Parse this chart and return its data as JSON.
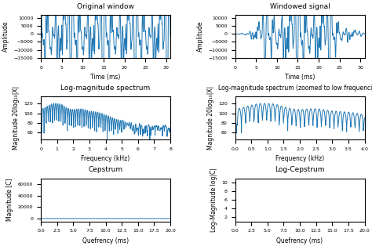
{
  "fig_width": 4.74,
  "fig_height": 3.14,
  "dpi": 100,
  "line_color": "#1f77b4",
  "line_width": 0.7,
  "subplots": {
    "original_window": {
      "title": "Original window",
      "xlabel": "Time (ms)",
      "ylabel": "Amplitude",
      "xlim": [
        0,
        31
      ],
      "ylim": [
        -15000,
        12000
      ],
      "yticks": [
        -15000,
        -10000,
        -5000,
        0,
        5000,
        10000
      ],
      "xticks": [
        0,
        5,
        10,
        15,
        20,
        25,
        30
      ]
    },
    "windowed_signal": {
      "title": "Windowed signal",
      "xlabel": "Time (ms)",
      "ylabel": "Amplitude",
      "xlim": [
        0,
        31
      ],
      "ylim": [
        -15000,
        12000
      ],
      "yticks": [
        -15000,
        -10000,
        -5000,
        0,
        5000,
        10000
      ],
      "xticks": [
        0,
        5,
        10,
        15,
        20,
        25,
        30
      ]
    },
    "log_mag_spectrum": {
      "title": "Log-magnitude spectrum",
      "xlabel": "Frequency (kHz)",
      "ylabel": "Magnitude 20log₁₀|X|",
      "xlim": [
        0,
        8
      ],
      "ylim": [
        45,
        135
      ],
      "yticks": [
        60,
        80,
        100,
        120
      ],
      "xticks": [
        0,
        1,
        2,
        3,
        4,
        5,
        6,
        7,
        8
      ]
    },
    "log_mag_zoomed": {
      "title": "Log-magnitude spectrum (zoomed to low frequencies)",
      "xlabel": "Frequency (kHz)",
      "ylabel": "Magnitude 20log₁₀|X|",
      "xlim": [
        0,
        4
      ],
      "ylim": [
        45,
        135
      ],
      "yticks": [
        60,
        80,
        100,
        120
      ],
      "xticks": [
        0.0,
        0.5,
        1.0,
        1.5,
        2.0,
        2.5,
        3.0,
        3.5,
        4.0
      ]
    },
    "cepstrum": {
      "title": "Cepstrum",
      "xlabel": "Quefrency (ms)",
      "ylabel": "Magnitude [C]",
      "xlim": [
        0,
        20
      ],
      "ylim": [
        -5000,
        70000
      ],
      "yticks": [
        0,
        20000,
        40000,
        60000
      ],
      "xticks": [
        0.0,
        2.5,
        5.0,
        7.5,
        10.0,
        12.5,
        15.0,
        17.5,
        20.0
      ]
    },
    "log_cepstrum": {
      "title": "Log-Cepstrum",
      "xlabel": "Quefrency (ms)",
      "ylabel": "Log-Magnitude log|C|",
      "xlim": [
        0,
        20
      ],
      "ylim": [
        1,
        11
      ],
      "yticks": [
        2,
        4,
        6,
        8,
        10
      ],
      "xticks": [
        0.0,
        2.5,
        5.0,
        7.5,
        10.0,
        12.5,
        15.0,
        17.5,
        20.0
      ]
    }
  }
}
